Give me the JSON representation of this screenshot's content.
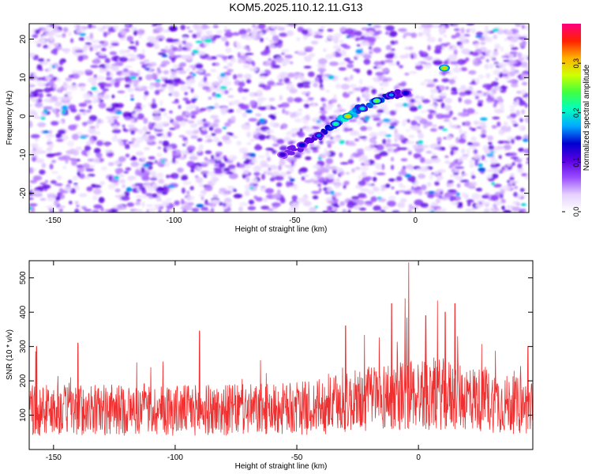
{
  "title": "KOM5.2025.110.12.11.G13",
  "chart_data": [
    {
      "type": "heatmap",
      "xlabel": "Height of straight line (km)",
      "ylabel": "Frequency (Hz)",
      "xlim": [
        -160,
        47
      ],
      "ylim": [
        -25,
        24
      ],
      "x_ticks": [
        -150,
        -100,
        -50,
        0
      ],
      "x_tick_labels": [
        "-150",
        "-100",
        "-50",
        "0"
      ],
      "y_ticks": [
        -20,
        -10,
        0,
        10,
        20
      ],
      "y_tick_labels": [
        "-20",
        "-10",
        "0",
        "10",
        "20"
      ],
      "colorbar": {
        "label": "Normalized spectral amplitude",
        "range": [
          0,
          0.38
        ],
        "ticks": [
          0,
          0.1,
          0.2,
          0.3
        ],
        "tick_labels": [
          "0.0",
          "0.1",
          "0.2",
          "0.3"
        ]
      },
      "colormap": [
        "#ffffff",
        "#e6d2ff",
        "#9a4dff",
        "#5a00e0",
        "#0000d0",
        "#00a8ff",
        "#00ffc0",
        "#40ff40",
        "#d0ff00",
        "#ffb000",
        "#ff2000",
        "#ff0080"
      ],
      "background_level": 0.04,
      "ridge": {
        "description": "",
        "points": [
          {
            "x": -55,
            "y": -10,
            "amp": 0.12
          },
          {
            "x": -47,
            "y": -7.5,
            "amp": 0.14
          },
          {
            "x": -40,
            "y": -5,
            "amp": 0.16
          },
          {
            "x": -33,
            "y": -2,
            "amp": 0.22
          },
          {
            "x": -28,
            "y": 0,
            "amp": 0.3
          },
          {
            "x": -22,
            "y": 2,
            "amp": 0.2
          },
          {
            "x": -16,
            "y": 4,
            "amp": 0.25
          },
          {
            "x": -10,
            "y": 5.5,
            "amp": 0.17
          },
          {
            "x": -4,
            "y": 6,
            "amp": 0.14
          },
          {
            "x": 12,
            "y": 12.5,
            "amp": 0.3
          }
        ]
      }
    },
    {
      "type": "line",
      "xlabel": "Height of straight line (km)",
      "ylabel": "SNR (10 * v/v)",
      "xlim": [
        -160,
        47
      ],
      "ylim": [
        0,
        550
      ],
      "x_ticks": [
        -150,
        -100,
        -50,
        0
      ],
      "x_tick_labels": [
        "-150",
        "-100",
        "-50",
        "0"
      ],
      "y_ticks": [
        100,
        200,
        300,
        400,
        500
      ],
      "y_tick_labels": [
        "100",
        "200",
        "300",
        "400",
        "500"
      ],
      "color": "#f03030",
      "baseline_mean": 115,
      "peaks": [
        {
          "x": -4,
          "y": 545
        },
        {
          "x": -5.5,
          "y": 440
        },
        {
          "x": -11,
          "y": 425
        },
        {
          "x": 15,
          "y": 425
        },
        {
          "x": 11,
          "y": 400
        },
        {
          "x": 3,
          "y": 390
        },
        {
          "x": -30,
          "y": 360
        },
        {
          "x": -90,
          "y": 345
        },
        {
          "x": 45,
          "y": 300
        },
        {
          "x": -157,
          "y": 300
        },
        {
          "x": -140,
          "y": 310
        }
      ]
    }
  ]
}
